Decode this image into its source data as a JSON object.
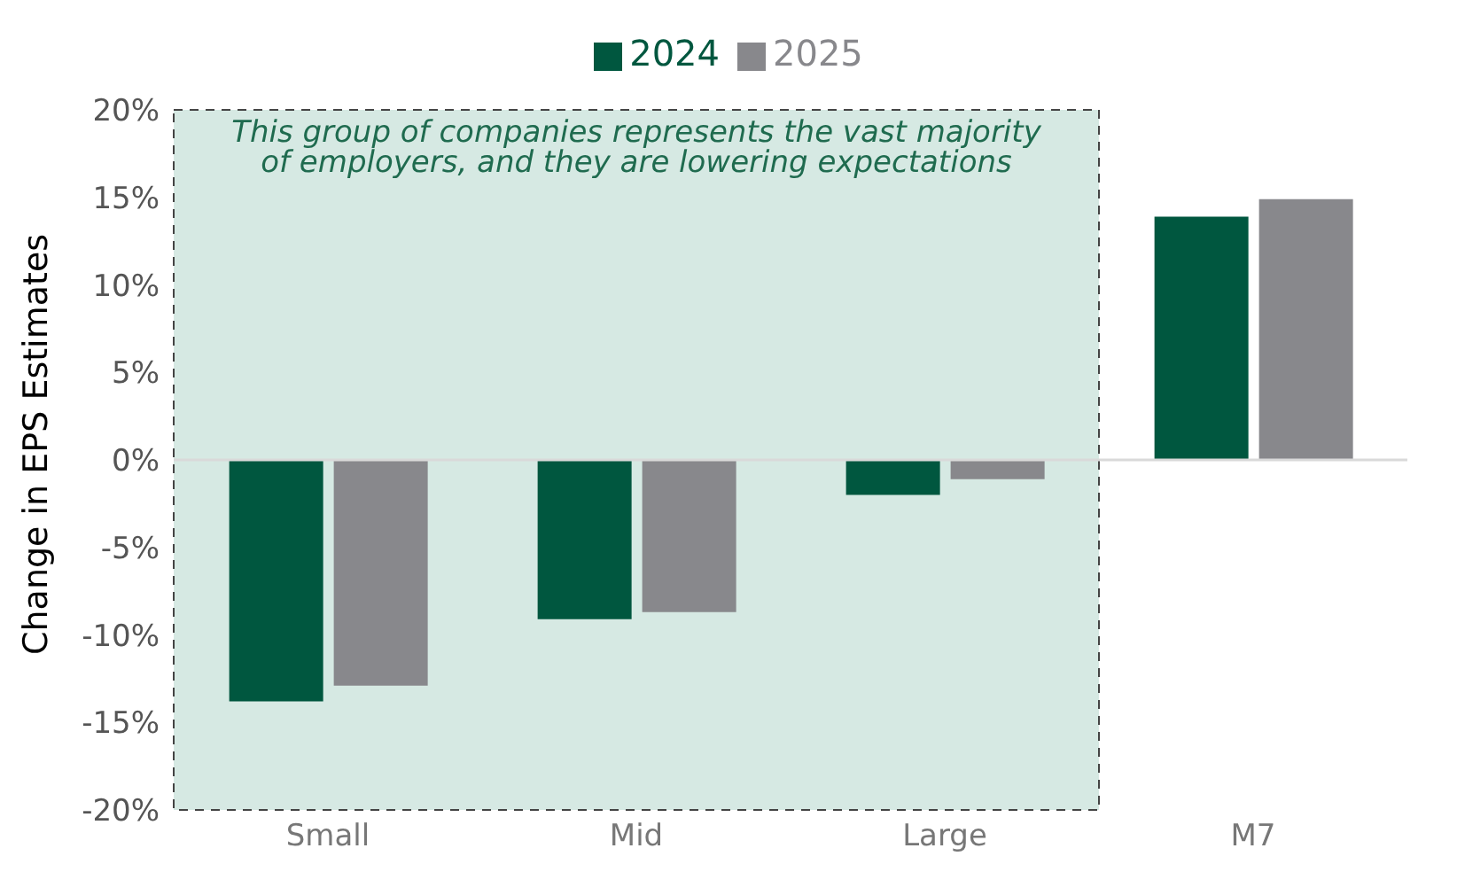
{
  "chart_data": {
    "type": "bar",
    "ylabel": "Change in EPS Estimates",
    "categories": [
      "Small",
      "Mid",
      "Large",
      "M7"
    ],
    "series": [
      {
        "name": "2024",
        "color": "#00573f",
        "values": [
          -13.8,
          -9.1,
          -2.0,
          13.9
        ]
      },
      {
        "name": "2025",
        "color": "#88888c",
        "values": [
          -12.9,
          -8.7,
          -1.1,
          14.9
        ]
      }
    ],
    "ylim": [
      -20,
      20
    ],
    "yticks": [
      {
        "value": -20,
        "label": "-20%"
      },
      {
        "value": -15,
        "label": "-15%"
      },
      {
        "value": -10,
        "label": "-10%"
      },
      {
        "value": -5,
        "label": "-5%"
      },
      {
        "value": 0,
        "label": "0%"
      },
      {
        "value": 5,
        "label": "5%"
      },
      {
        "value": 10,
        "label": "10%"
      },
      {
        "value": 15,
        "label": "15%"
      },
      {
        "value": 20,
        "label": "20%"
      }
    ],
    "legend": "top",
    "ref_lines": [
      {
        "axis": "y",
        "value": 0,
        "color": "#d9d9d9"
      }
    ],
    "bands": [
      {
        "axis": "x",
        "from": "Small",
        "to": "Large",
        "label": "This group of companies represents the  vast majority of employers, and they are lowering expectations",
        "color": "#d6e9e3"
      }
    ]
  }
}
